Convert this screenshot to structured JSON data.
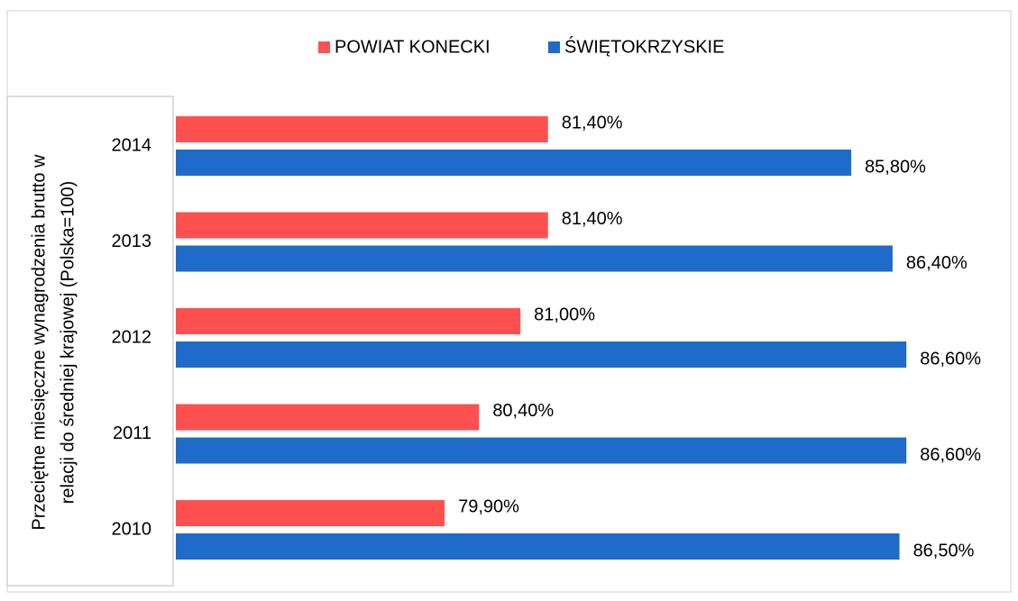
{
  "chart_data": {
    "type": "hbar",
    "ylabel": [
      "Przeciętne miesięczne wynagrodzenia brutto w",
      "relacji do średniej krajowej (Polska=100)"
    ],
    "categories": [
      "2014",
      "2013",
      "2012",
      "2011",
      "2010"
    ],
    "series": [
      {
        "name": "POWIAT KONECKI",
        "color": "#ff5050",
        "values": [
          81.4,
          81.4,
          81.0,
          80.4,
          79.9
        ],
        "value_labels": [
          "81,40%",
          "81,40%",
          "81,00%",
          "80,40%",
          "79,90%"
        ]
      },
      {
        "name": "ŚWIĘTOKRZYSKIE",
        "color": "#1f6bc9",
        "values": [
          85.8,
          86.4,
          86.6,
          86.6,
          86.5
        ],
        "value_labels": [
          "85,80%",
          "86,40%",
          "86,60%",
          "86,60%",
          "86,50%"
        ]
      }
    ],
    "xlim": [
      76,
      87.5
    ],
    "legend": "top"
  }
}
